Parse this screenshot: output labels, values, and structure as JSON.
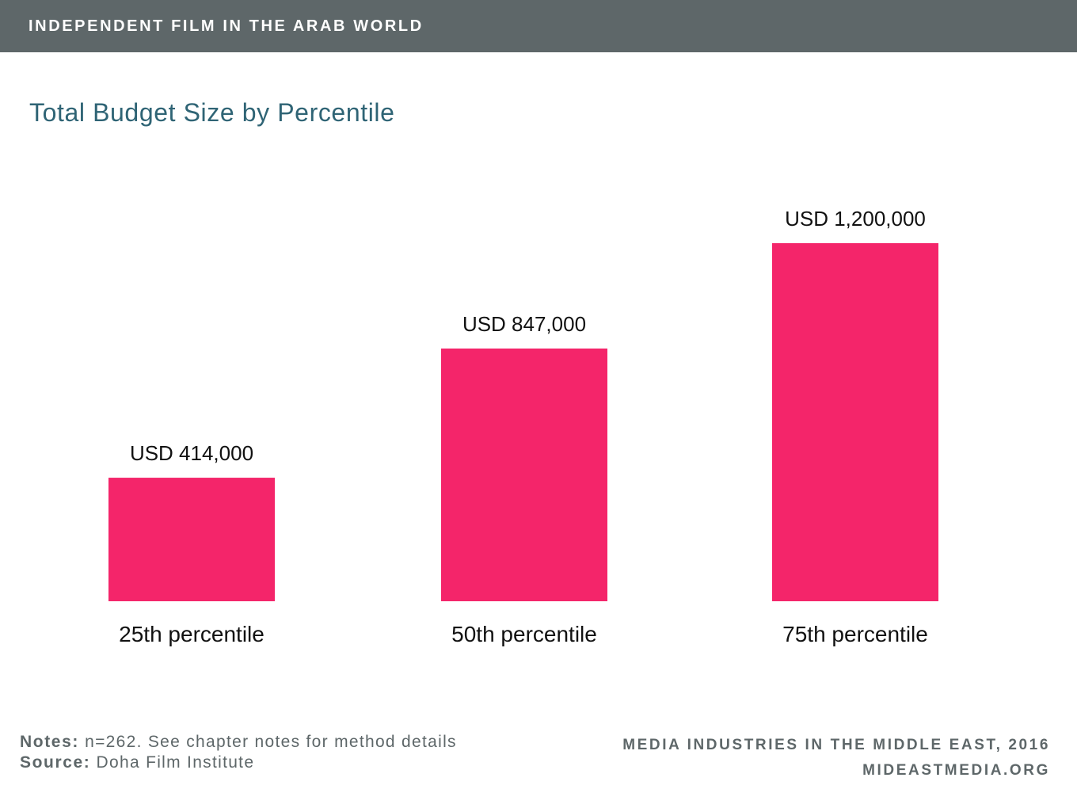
{
  "header": {
    "banner": "INDEPENDENT FILM IN THE ARAB WORLD"
  },
  "chart_data": {
    "type": "bar",
    "title": "Total Budget Size by Percentile",
    "categories": [
      "25th percentile",
      "50th percentile",
      "75th percentile"
    ],
    "values": [
      414000,
      847000,
      1200000
    ],
    "value_labels": [
      "USD 414,000",
      "USD 847,000",
      "USD 1,200,000"
    ],
    "bar_color": "#f4256a",
    "grid": false,
    "legend": "none"
  },
  "footer": {
    "notes_label": "Notes:",
    "notes_text": "n=262. See chapter notes for method details",
    "source_label": "Source:",
    "source_text": "Doha Film Institute",
    "credit_line1": "MEDIA INDUSTRIES IN THE MIDDLE EAST, 2016",
    "credit_line2": "MIDEASTMEDIA.ORG"
  }
}
